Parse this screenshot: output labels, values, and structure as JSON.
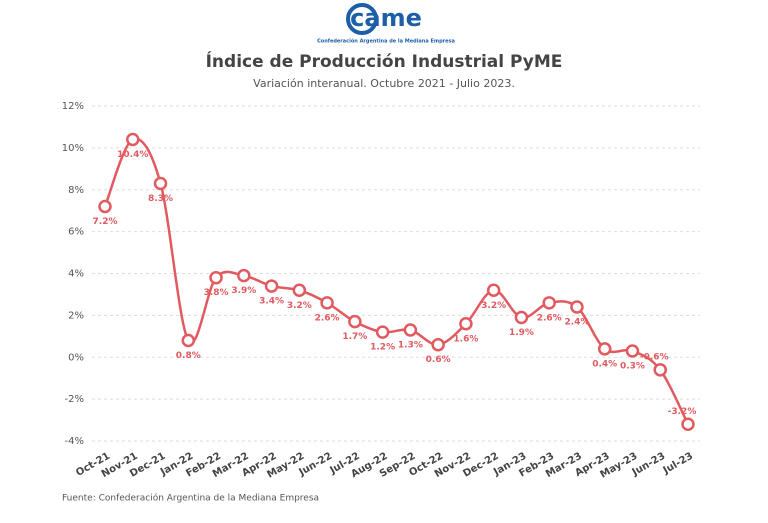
{
  "logo": {
    "text": "came",
    "caption": "Confederación Argentina de la Mediana Empresa"
  },
  "chart_data": {
    "type": "line",
    "title": "Índice de Producción Industrial PyME",
    "subtitle": "Variación interanual. Octubre 2021 - Julio 2023.",
    "source": "Fuente: Confederación Argentina de la Mediana Empresa",
    "categories": [
      "Oct-21",
      "Nov-21",
      "Dec-21",
      "Jan-22",
      "Feb-22",
      "Mar-22",
      "Apr-22",
      "May-22",
      "Jun-22",
      "Jul-22",
      "Aug-22",
      "Sep-22",
      "Oct-22",
      "Nov-22",
      "Dec-22",
      "Jan-23",
      "Feb-23",
      "Mar-23",
      "Apr-23",
      "May-23",
      "Jun-23",
      "Jul-23"
    ],
    "series": [
      {
        "color": "#e05a5f",
        "values": [
          7.2,
          10.4,
          8.3,
          0.8,
          3.8,
          3.9,
          3.4,
          3.2,
          2.6,
          1.7,
          1.2,
          1.3,
          0.6,
          1.6,
          3.2,
          1.9,
          2.6,
          2.4,
          0.4,
          0.3,
          -0.6,
          -3.2
        ],
        "value_labels": [
          "7.2%",
          "10.4%",
          "8.3%",
          "0.8%",
          "3.8%",
          "3.9%",
          "3.4%",
          "3.2%",
          "2.6%",
          "1.7%",
          "1.2%",
          "1.3%",
          "0.6%",
          "1.6%",
          "3.2%",
          "1.9%",
          "2.6%",
          "2.4%",
          "0.4%",
          "0.3%",
          "-0.6%",
          "-3.2%"
        ]
      }
    ],
    "ylim": [
      -4,
      12
    ],
    "yticks": [
      {
        "value": -4,
        "label": "-4%"
      },
      {
        "value": -2,
        "label": "-2%"
      },
      {
        "value": 0,
        "label": "0%"
      },
      {
        "value": 2,
        "label": "2%"
      },
      {
        "value": 4,
        "label": "4%"
      },
      {
        "value": 6,
        "label": "6%"
      },
      {
        "value": 8,
        "label": "8%"
      },
      {
        "value": 10,
        "label": "10%"
      },
      {
        "value": 12,
        "label": "12%"
      }
    ],
    "grid": true
  }
}
